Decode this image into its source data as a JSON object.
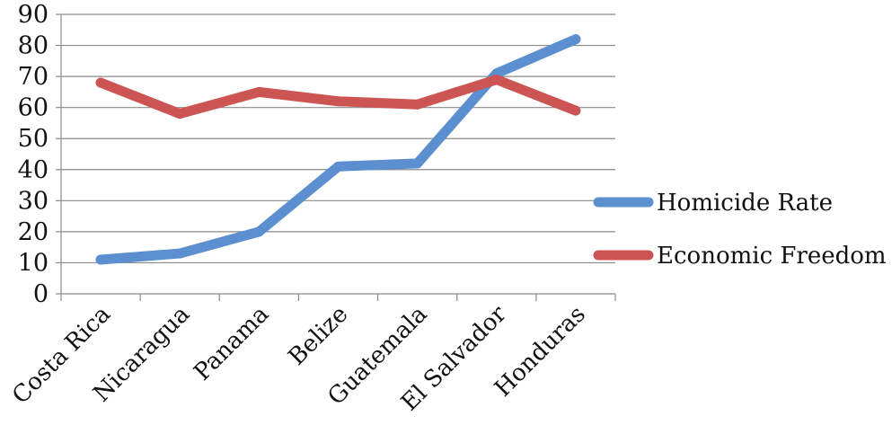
{
  "chart_data": {
    "type": "line",
    "title": "",
    "xlabel": "",
    "ylabel": "",
    "ylim": [
      0,
      90
    ],
    "yticks": [
      0,
      10,
      20,
      30,
      40,
      50,
      60,
      70,
      80,
      90
    ],
    "categories": [
      "Costa Rica",
      "Nicaragua",
      "Panama",
      "Belize",
      "Guatemala",
      "El Salvador",
      "Honduras"
    ],
    "grid": true,
    "legend_position": "right",
    "series": [
      {
        "name": "Homicide Rate",
        "color": "#5b8fd0",
        "values": [
          11,
          13,
          20,
          41,
          42,
          71,
          82
        ]
      },
      {
        "name": "Economic Freedom",
        "color": "#cc5553",
        "values": [
          68,
          58,
          65,
          62,
          61,
          69,
          59
        ]
      }
    ]
  }
}
